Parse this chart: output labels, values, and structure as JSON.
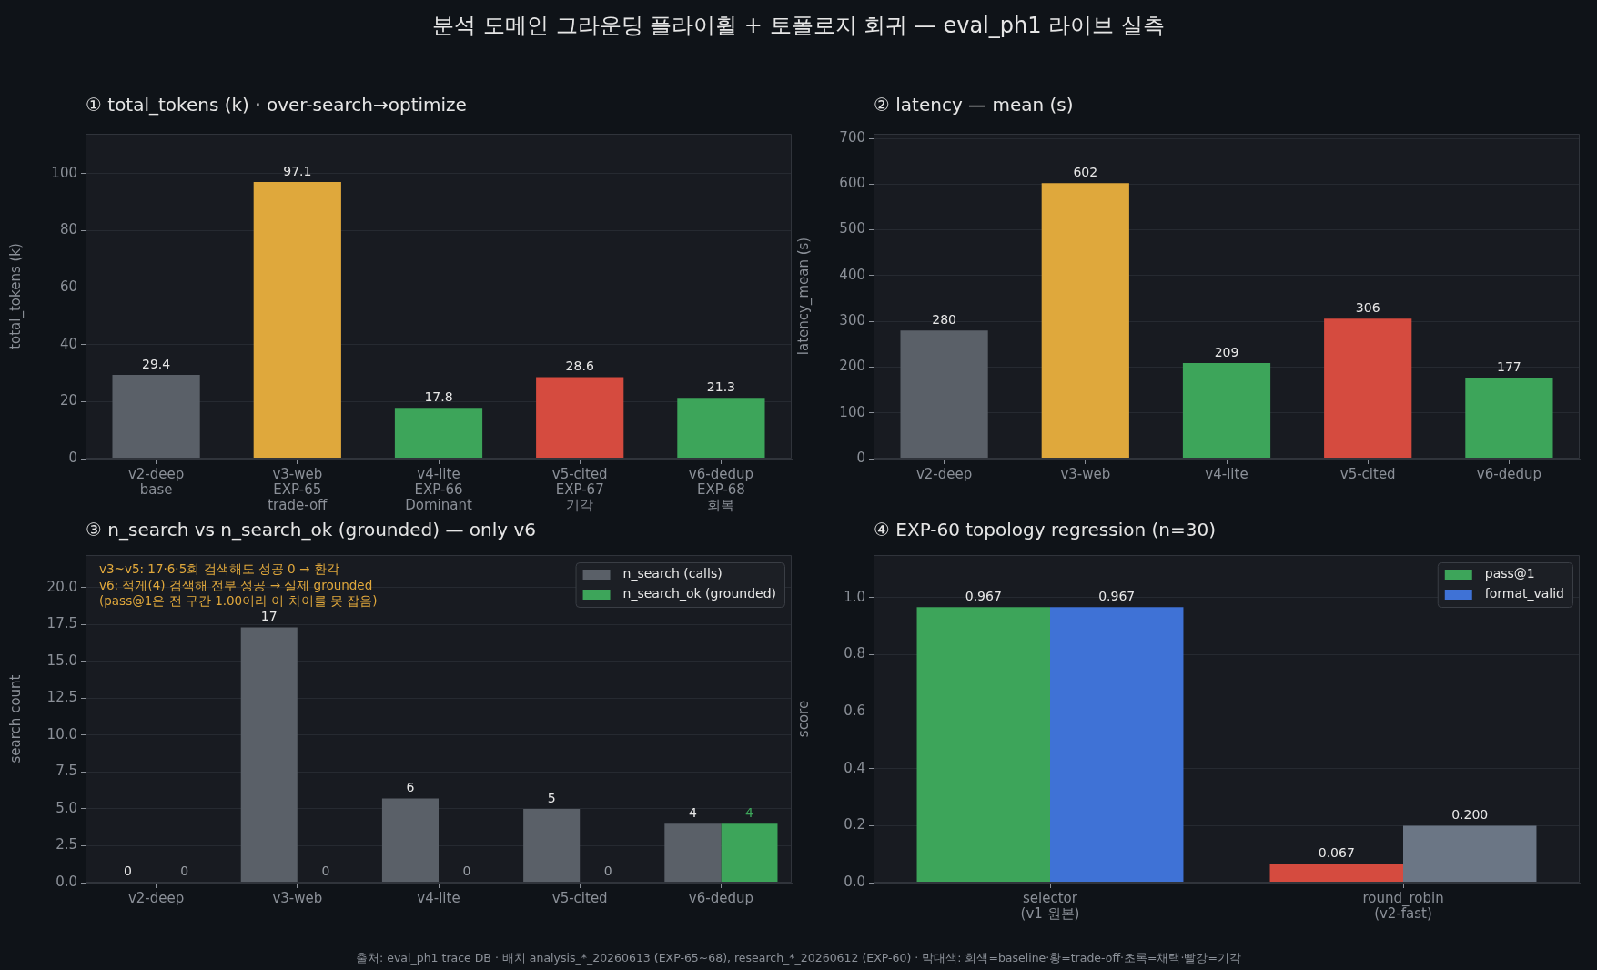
{
  "chart_data": [
    {
      "type": "other",
      "title": "분석 도메인 그라운딩 플라이휠 + 토폴로지 회귀 — eval_ph1 라이브 실측"
    },
    {
      "type": "bar",
      "title": "① total_tokens (k) · over-search→optimize",
      "ylabel": "total_tokens (k)",
      "categories": [
        "v2-deep\nbase",
        "v3-web\nEXP-65\ntrade-off",
        "v4-lite\nEXP-66\nDominant",
        "v5-cited\nEXP-67\n기각",
        "v6-dedup\nEXP-68\n회복"
      ],
      "values": [
        29.4,
        97.1,
        17.8,
        28.6,
        21.3
      ],
      "colors": [
        "#5a6068",
        "#dfa83c",
        "#3da55a",
        "#d54b3f",
        "#3da55a"
      ],
      "data_labels": true,
      "ylim": [
        0,
        114
      ],
      "yticks": [
        0,
        20,
        40,
        60,
        80,
        100
      ],
      "grid": "y"
    },
    {
      "type": "bar",
      "title": "② latency — mean (s)",
      "ylabel": "latency_mean (s)",
      "categories": [
        "v2-deep",
        "v3-web",
        "v4-lite",
        "v5-cited",
        "v6-dedup"
      ],
      "values": [
        280,
        602,
        209,
        306,
        177
      ],
      "colors": [
        "#5a6068",
        "#dfa83c",
        "#3da55a",
        "#d54b3f",
        "#3da55a"
      ],
      "data_labels": true,
      "ylim": [
        0,
        710
      ],
      "yticks": [
        0,
        100,
        200,
        300,
        400,
        500,
        600,
        700
      ],
      "grid": "y"
    },
    {
      "type": "bar",
      "title": "③ n_search vs n_search_ok (grounded) — only v6",
      "ylabel": "search count",
      "categories": [
        "v2-deep",
        "v3-web",
        "v4-lite",
        "v5-cited",
        "v6-dedup"
      ],
      "series": [
        {
          "name": "n_search (calls)",
          "color": "#5a6068",
          "values": [
            0,
            17.3,
            5.7,
            5.0,
            4.0
          ],
          "value_labels": [
            "0",
            "17",
            "6",
            "5",
            "4"
          ]
        },
        {
          "name": "n_search_ok (grounded)",
          "color": "#3da55a",
          "values": [
            0,
            0,
            0,
            0,
            4
          ],
          "value_labels": [
            "0",
            "0",
            "0",
            "0",
            "4"
          ]
        }
      ],
      "ylim": [
        0,
        22.2
      ],
      "yticks": [
        {
          "value": 0,
          "label": "0.0"
        },
        2.5,
        {
          "value": 5,
          "label": "5.0"
        },
        7.5,
        {
          "value": 10,
          "label": "10.0"
        },
        12.5,
        {
          "value": 15,
          "label": "15.0"
        },
        17.5,
        {
          "value": 20,
          "label": "20.0"
        }
      ],
      "grid": "y",
      "legend": "top right",
      "annotations": [
        "v3~v5: 17·6·5회 검색해도 성공 0 → 환각\nv6: 적게(4) 검색해 전부 성공 → 실제 grounded\n(pass@1은 전 구간 1.00이라 이 차이를 못 잡음)"
      ]
    },
    {
      "type": "bar",
      "title": "④ EXP-60 topology regression (n=30)",
      "ylabel": "score",
      "categories": [
        "selector\n(v1 원본)",
        "round_robin\n(v2-fast)"
      ],
      "series": [
        {
          "name": "pass@1",
          "colors": [
            "#3da55a",
            "#d54b3f"
          ],
          "values": [
            0.967,
            0.067
          ],
          "value_labels": [
            "0.967",
            "0.067"
          ]
        },
        {
          "name": "format_valid",
          "colors": [
            "#3f72d6",
            "#6b7685"
          ],
          "values": [
            0.967,
            0.2
          ],
          "value_labels": [
            "0.967",
            "0.200"
          ]
        }
      ],
      "ylim": [
        0,
        1.15
      ],
      "yticks": [
        {
          "value": 0,
          "label": "0.0"
        },
        0.2,
        0.4,
        0.6,
        0.8,
        {
          "value": 1,
          "label": "1.0"
        }
      ],
      "grid": "y",
      "legend": "top right"
    },
    {
      "type": "other",
      "annotations": [
        "출처: eval_ph1 trace DB · 배치 analysis_*_20260613 (EXP-65~68), research_*_20260612 (EXP-60) · 막대색: 회색=baseline·황=trade-off·초록=채택·빨강=기각"
      ]
    }
  ]
}
